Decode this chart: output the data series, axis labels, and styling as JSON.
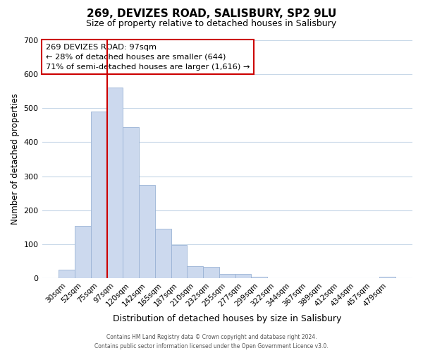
{
  "title": "269, DEVIZES ROAD, SALISBURY, SP2 9LU",
  "subtitle": "Size of property relative to detached houses in Salisbury",
  "xlabel": "Distribution of detached houses by size in Salisbury",
  "ylabel": "Number of detached properties",
  "bar_labels": [
    "30sqm",
    "52sqm",
    "75sqm",
    "97sqm",
    "120sqm",
    "142sqm",
    "165sqm",
    "187sqm",
    "210sqm",
    "232sqm",
    "255sqm",
    "277sqm",
    "299sqm",
    "322sqm",
    "344sqm",
    "367sqm",
    "389sqm",
    "412sqm",
    "434sqm",
    "457sqm",
    "479sqm"
  ],
  "bar_values": [
    25,
    155,
    490,
    560,
    445,
    275,
    145,
    98,
    37,
    35,
    14,
    13,
    5,
    0,
    0,
    0,
    0,
    0,
    0,
    0,
    5
  ],
  "bar_color": "#ccd9ee",
  "bar_edgecolor": "#9ab3d5",
  "vline_color": "#cc0000",
  "vline_index": 3,
  "annotation_title": "269 DEVIZES ROAD: 97sqm",
  "annotation_line1": "← 28% of detached houses are smaller (644)",
  "annotation_line2": "71% of semi-detached houses are larger (1,616) →",
  "annotation_box_edgecolor": "#cc0000",
  "ylim": [
    0,
    700
  ],
  "yticks": [
    0,
    100,
    200,
    300,
    400,
    500,
    600,
    700
  ],
  "footer1": "Contains HM Land Registry data © Crown copyright and database right 2024.",
  "footer2": "Contains public sector information licensed under the Open Government Licence v3.0.",
  "bg_color": "#ffffff",
  "grid_color": "#c8d8e8"
}
